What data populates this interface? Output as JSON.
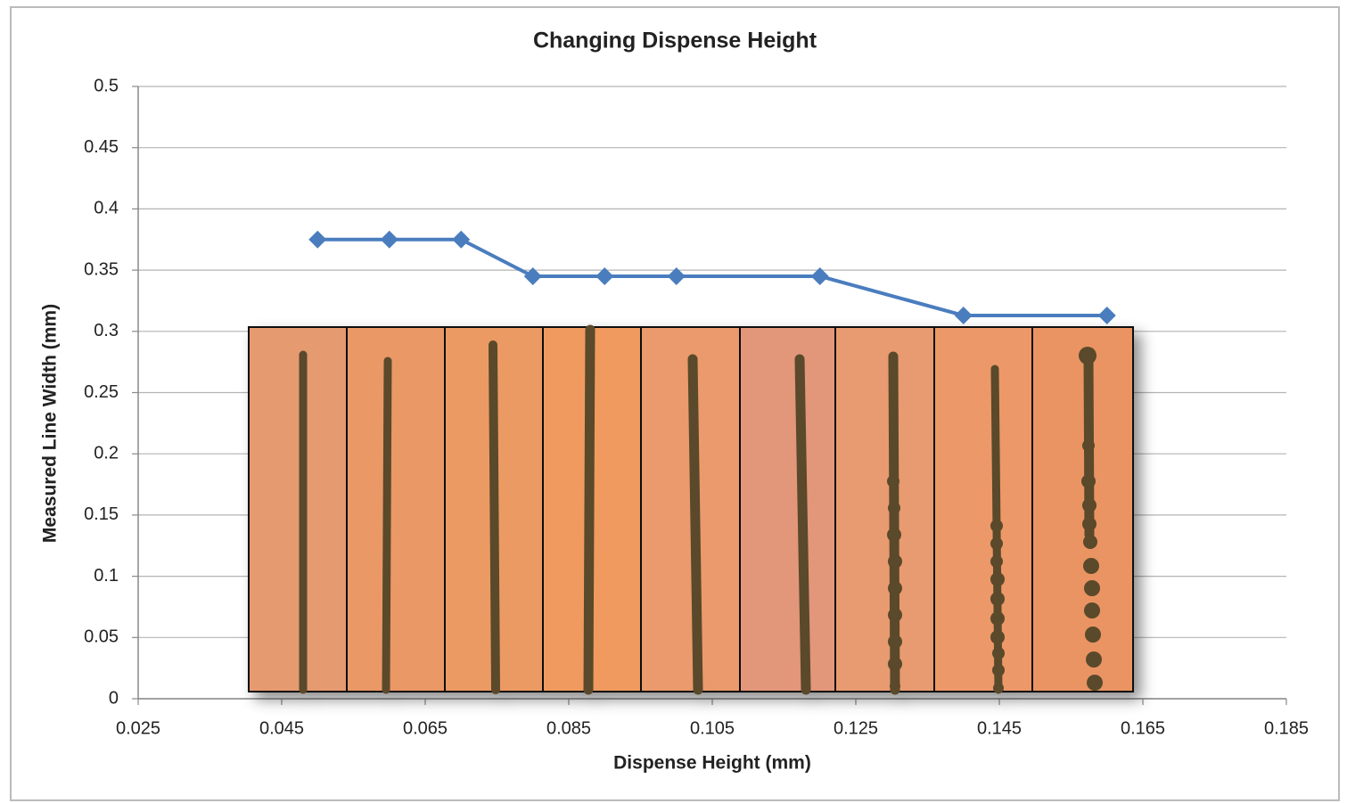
{
  "chart_data": {
    "type": "line",
    "title": "Changing Dispense Height",
    "x_label": "Dispense Height (mm)",
    "y_label": "Measured  Line Width (mm)",
    "x": [
      0.05,
      0.06,
      0.07,
      0.08,
      0.09,
      0.1,
      0.12,
      0.14,
      0.16
    ],
    "series": [
      {
        "color": "#4a7dbe",
        "values": [
          0.375,
          0.375,
          0.375,
          0.345,
          0.345,
          0.345,
          0.345,
          0.313,
          0.313
        ]
      }
    ],
    "xlim": [
      0.025,
      0.185
    ],
    "xticks": [
      0.025,
      0.045,
      0.065,
      0.085,
      0.105,
      0.125,
      0.145,
      0.165,
      0.185
    ],
    "ylim": [
      0,
      0.5
    ],
    "yticks": [
      0,
      0.05,
      0.1,
      0.15,
      0.2,
      0.25,
      0.3,
      0.35,
      0.4,
      0.45,
      0.5
    ],
    "grid": true
  }
}
